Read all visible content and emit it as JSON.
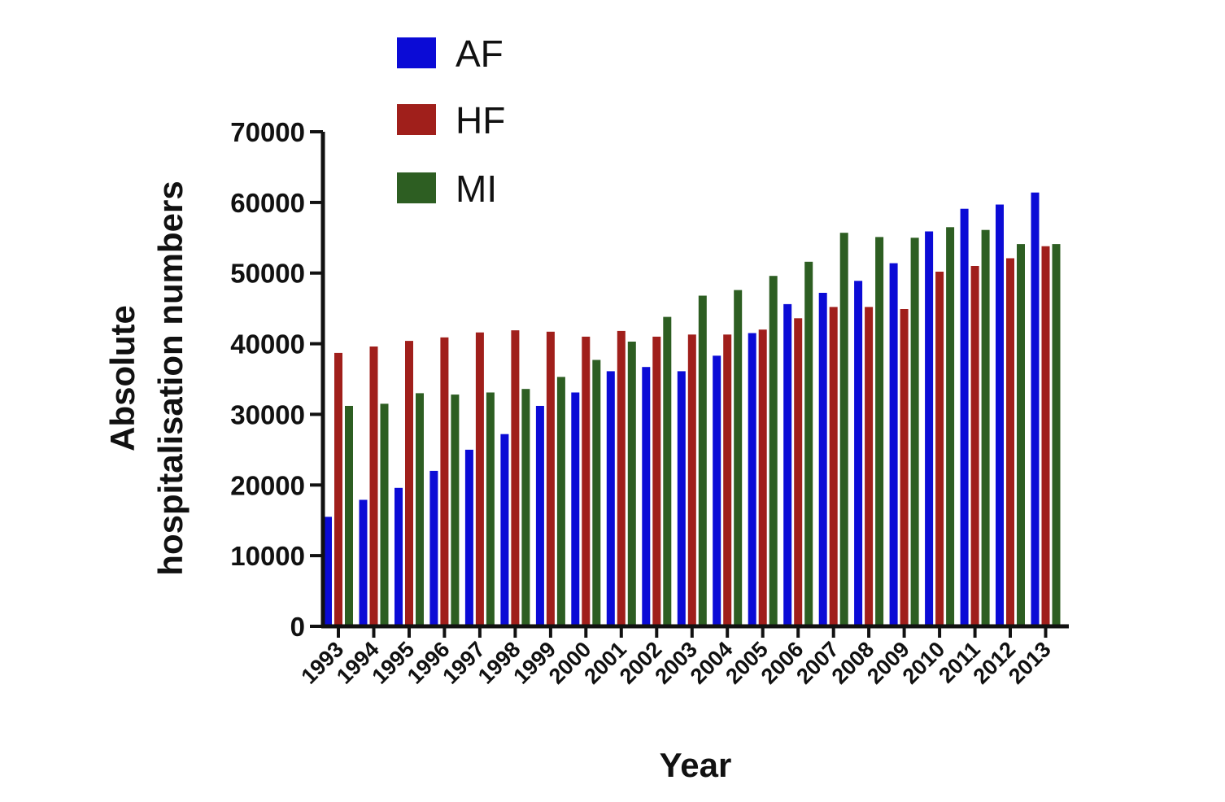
{
  "chart_data": {
    "type": "bar",
    "title": "",
    "xlabel": "Year",
    "ylabel_lines": [
      "Absolute",
      "hospitalisation numbers"
    ],
    "ylim": [
      0,
      70000
    ],
    "yticks": [
      "0",
      "10000",
      "20000",
      "30000",
      "40000",
      "50000",
      "60000",
      "70000"
    ],
    "legend_position": "top-left",
    "grid": false,
    "categories": [
      "1993",
      "1994",
      "1995",
      "1996",
      "1997",
      "1998",
      "1999",
      "2000",
      "2001",
      "2002",
      "2003",
      "2004",
      "2005",
      "2006",
      "2007",
      "2008",
      "2009",
      "2010",
      "2011",
      "2012",
      "2013"
    ],
    "series": [
      {
        "name": "AF",
        "color": "#0b0bd6",
        "values": [
          15500,
          17900,
          19600,
          22000,
          25000,
          27200,
          31200,
          33100,
          36100,
          36700,
          36100,
          38300,
          41500,
          45600,
          47200,
          48900,
          51400,
          55900,
          59100,
          59700,
          61400
        ]
      },
      {
        "name": "HF",
        "color": "#a01f1b",
        "values": [
          38700,
          39600,
          40400,
          40900,
          41600,
          41900,
          41700,
          41000,
          41800,
          41000,
          41300,
          41300,
          42000,
          43600,
          45200,
          45200,
          44900,
          50200,
          51000,
          52100,
          53800
        ]
      },
      {
        "name": "MI",
        "color": "#2d5e22",
        "values": [
          31200,
          31500,
          33000,
          32800,
          33100,
          33600,
          35300,
          37700,
          40300,
          43800,
          46800,
          47600,
          49600,
          51600,
          55700,
          55100,
          55000,
          56500,
          56100,
          54100,
          54100
        ]
      }
    ]
  }
}
